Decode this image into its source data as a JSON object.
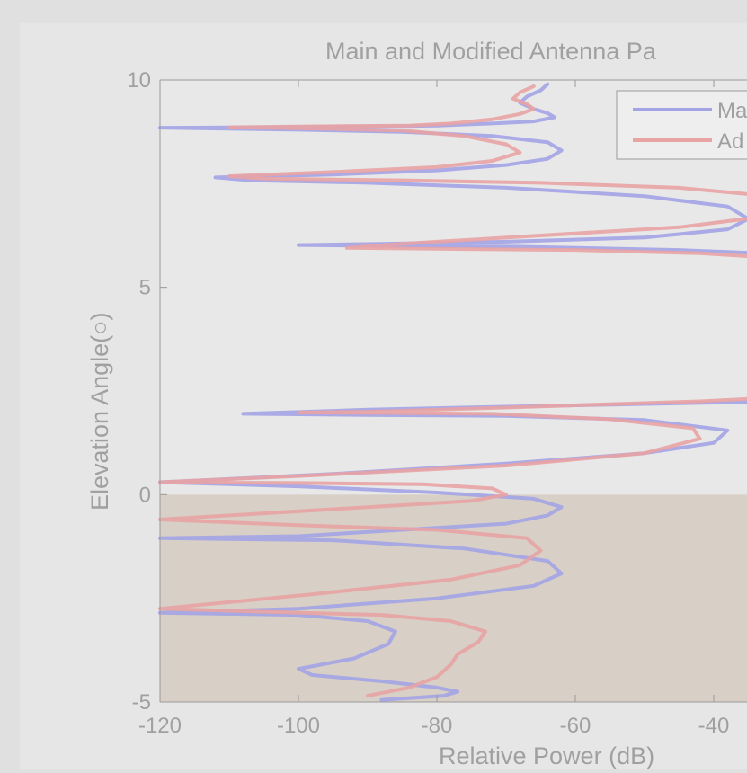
{
  "chart_data": {
    "type": "line",
    "title": "Main and Modified Antenna Pa",
    "xlabel": "Relative Power (dB)",
    "ylabel": "Elevation Angle(○)",
    "xlim": [
      -120,
      -30
    ],
    "ylim": [
      -5,
      10
    ],
    "xticks": [
      {
        "value": -120,
        "label": "-120"
      },
      {
        "value": -100,
        "label": "-100"
      },
      {
        "value": -80,
        "label": "-80"
      },
      {
        "value": -60,
        "label": "-60"
      },
      {
        "value": -40,
        "label": "-40"
      }
    ],
    "yticks": [
      {
        "value": -5,
        "label": "-5"
      },
      {
        "value": 0,
        "label": "0"
      },
      {
        "value": 5,
        "label": "5"
      },
      {
        "value": 10,
        "label": "10"
      }
    ],
    "grid": false,
    "legend_position": "top-right",
    "ground_region": {
      "y_from": -5,
      "y_to": 0,
      "color": "#d8cfc6"
    },
    "colors": {
      "figure_background": "#e0e0e0",
      "axes_background": "#e8e8e8",
      "axis_text": "#a0a0a0"
    },
    "series": [
      {
        "name": "Ma",
        "color": "#a3a3e6",
        "x": [
          -64,
          -65,
          -67,
          -68,
          -66,
          -64,
          -63,
          -66,
          -72,
          -80,
          -90,
          -105,
          -118,
          -120,
          -100,
          -85,
          -72,
          -64,
          -62,
          -64,
          -70,
          -80,
          -95,
          -112,
          -107,
          -90,
          -70,
          -50,
          -38,
          -35,
          -38,
          -50,
          -70,
          -88,
          -100,
          -88,
          -68,
          -45,
          -30,
          -30,
          -45,
          -70,
          -90,
          -108,
          -90,
          -70,
          -50,
          -38,
          -40,
          -50,
          -70,
          -95,
          -120,
          -100,
          -80,
          -66,
          -62,
          -64,
          -70,
          -85,
          -100,
          -120,
          -95,
          -76,
          -64,
          -62,
          -66,
          -80,
          -100,
          -120,
          -100,
          -90,
          -86,
          -87,
          -92,
          -100,
          -98,
          -88,
          -80,
          -77,
          -79,
          -88
        ],
        "y": [
          9.9,
          9.75,
          9.6,
          9.45,
          9.3,
          9.2,
          9.1,
          9.0,
          8.95,
          8.9,
          8.88,
          8.86,
          8.85,
          8.85,
          8.8,
          8.75,
          8.65,
          8.5,
          8.3,
          8.1,
          7.95,
          7.82,
          7.72,
          7.65,
          7.58,
          7.52,
          7.4,
          7.2,
          6.95,
          6.65,
          6.4,
          6.2,
          6.1,
          6.05,
          6.02,
          6.0,
          5.98,
          5.9,
          5.8,
          2.25,
          2.2,
          2.12,
          2.05,
          1.95,
          1.92,
          1.9,
          1.8,
          1.55,
          1.25,
          1.0,
          0.75,
          0.5,
          0.3,
          0.2,
          0.05,
          -0.1,
          -0.3,
          -0.5,
          -0.7,
          -0.85,
          -1.0,
          -1.05,
          -1.1,
          -1.3,
          -1.6,
          -1.9,
          -2.2,
          -2.5,
          -2.75,
          -2.85,
          -2.9,
          -3.05,
          -3.3,
          -3.6,
          -3.95,
          -4.2,
          -4.35,
          -4.5,
          -4.65,
          -4.75,
          -4.85,
          -4.95
        ]
      },
      {
        "name": "Ad",
        "color": "#e8a3a3",
        "x": [
          -66,
          -68,
          -69,
          -67,
          -66,
          -68,
          -72,
          -78,
          -84,
          -100,
          -110,
          -98,
          -85,
          -76,
          -70,
          -68,
          -72,
          -80,
          -95,
          -110,
          -105,
          -85,
          -65,
          -45,
          -32,
          -30,
          -33,
          -45,
          -65,
          -85,
          -93,
          -80,
          -60,
          -42,
          -30,
          -30,
          -42,
          -70,
          -90,
          -100,
          -88,
          -72,
          -55,
          -43,
          -42,
          -50,
          -70,
          -100,
          -120,
          -100,
          -82,
          -72,
          -70,
          -75,
          -90,
          -105,
          -120,
          -98,
          -80,
          -67,
          -65,
          -68,
          -78,
          -98,
          -120,
          -100,
          -88,
          -78,
          -73,
          -74,
          -77,
          -78,
          -80,
          -84,
          -90
        ],
        "y": [
          9.85,
          9.7,
          9.55,
          9.42,
          9.3,
          9.18,
          9.05,
          8.95,
          8.9,
          8.88,
          8.86,
          8.83,
          8.78,
          8.65,
          8.45,
          8.25,
          8.05,
          7.9,
          7.78,
          7.68,
          7.62,
          7.58,
          7.52,
          7.4,
          7.2,
          6.95,
          6.7,
          6.45,
          6.25,
          6.05,
          5.95,
          5.93,
          5.9,
          5.82,
          5.7,
          2.35,
          2.25,
          2.1,
          2.0,
          1.98,
          1.97,
          1.95,
          1.82,
          1.6,
          1.35,
          1.0,
          0.7,
          0.45,
          0.3,
          0.28,
          0.25,
          0.15,
          0.0,
          -0.15,
          -0.3,
          -0.45,
          -0.6,
          -0.75,
          -0.85,
          -1.05,
          -1.35,
          -1.7,
          -2.05,
          -2.4,
          -2.75,
          -2.85,
          -2.9,
          -3.05,
          -3.3,
          -3.55,
          -3.85,
          -4.1,
          -4.4,
          -4.65,
          -4.85
        ]
      }
    ]
  }
}
